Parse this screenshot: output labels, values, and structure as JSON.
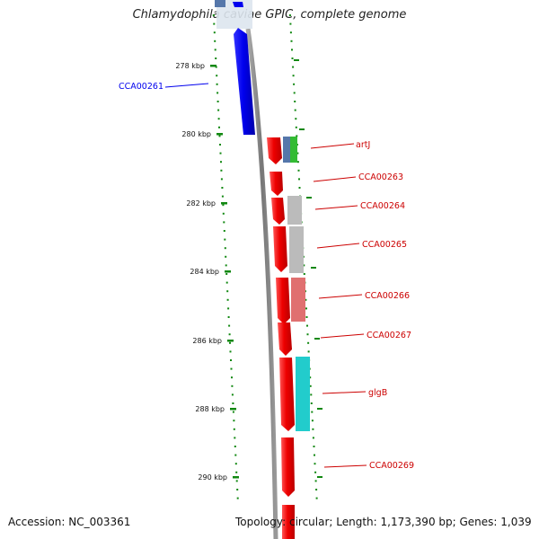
{
  "title": "Chlamydophila caviae GPIC, complete genome",
  "accession": "Accession: NC_003361",
  "topology": "Topology: circular; Length: 1,173,390 bp; Genes: 1,039",
  "colors": {
    "forward_gene": "#0000ee",
    "reverse_gene": "#ee0000",
    "backbone": "#888888",
    "dots": "#118811",
    "cog_blue": "#5577aa",
    "cog_green": "#33bb33",
    "cog_gray": "#bbbbbb",
    "cog_salmon": "#e07070",
    "cog_cyan": "#22cccc"
  },
  "ticks": [
    {
      "label": "278 kbp"
    },
    {
      "label": "280 kbp"
    },
    {
      "label": "282 kbp"
    },
    {
      "label": "284 kbp"
    },
    {
      "label": "286 kbp"
    },
    {
      "label": "288 kbp"
    },
    {
      "label": "290 kbp"
    }
  ],
  "labels": [
    {
      "text": "CCA00261",
      "color": "#0000ee"
    },
    {
      "text": "artJ",
      "color": "#cc0000"
    },
    {
      "text": "CCA00263",
      "color": "#cc0000"
    },
    {
      "text": "CCA00264",
      "color": "#cc0000"
    },
    {
      "text": "CCA00265",
      "color": "#cc0000"
    },
    {
      "text": "CCA00266",
      "color": "#cc0000"
    },
    {
      "text": "CCA00267",
      "color": "#cc0000"
    },
    {
      "text": "glgB",
      "color": "#cc0000"
    },
    {
      "text": "CCA00269",
      "color": "#cc0000"
    }
  ]
}
